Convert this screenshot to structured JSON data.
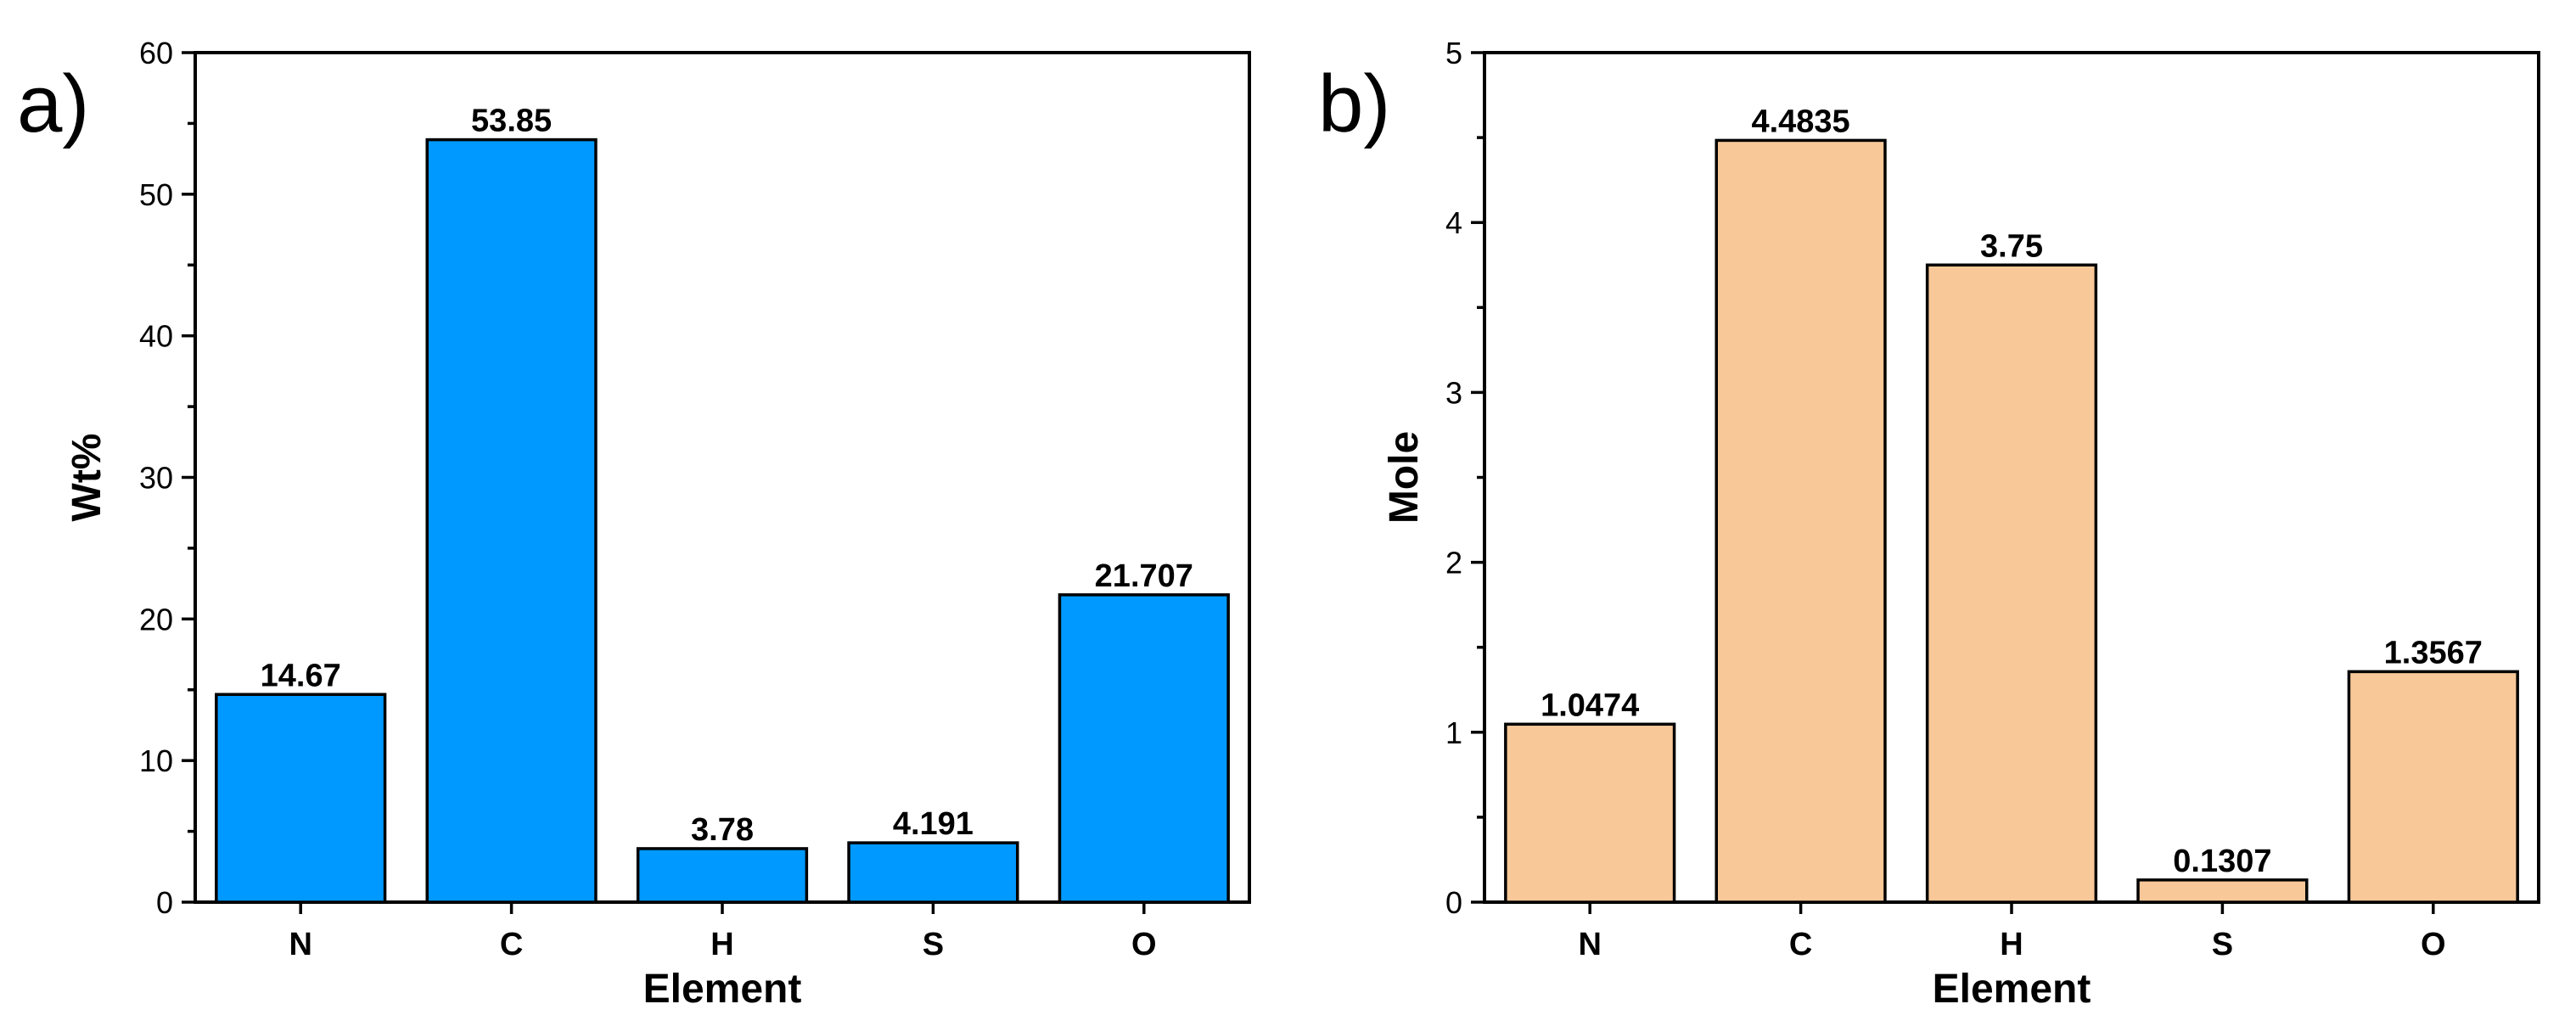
{
  "chart_data": [
    {
      "panel": "a)",
      "type": "bar",
      "categories": [
        "N",
        "C",
        "H",
        "S",
        "O"
      ],
      "values": [
        14.67,
        53.85,
        3.78,
        4.191,
        21.707
      ],
      "data_labels": [
        "14.67",
        "53.85",
        "3.78",
        "4.191",
        "21.707"
      ],
      "xlabel": "Element",
      "ylabel": "Wt%",
      "ylim": [
        0,
        60
      ],
      "yticks": [
        0,
        10,
        20,
        30,
        40,
        50,
        60
      ],
      "bar_color": "#0099ff",
      "grid": false
    },
    {
      "panel": "b)",
      "type": "bar",
      "categories": [
        "N",
        "C",
        "H",
        "S",
        "O"
      ],
      "values": [
        1.0474,
        4.4835,
        3.75,
        0.1307,
        1.3567
      ],
      "data_labels": [
        "1.0474",
        "4.4835",
        "3.75",
        "0.1307",
        "1.3567"
      ],
      "xlabel": "Element",
      "ylabel": "Mole",
      "ylim": [
        0,
        5
      ],
      "yticks": [
        0,
        1,
        2,
        3,
        4,
        5
      ],
      "bar_color": "#f9c898",
      "grid": false
    }
  ]
}
